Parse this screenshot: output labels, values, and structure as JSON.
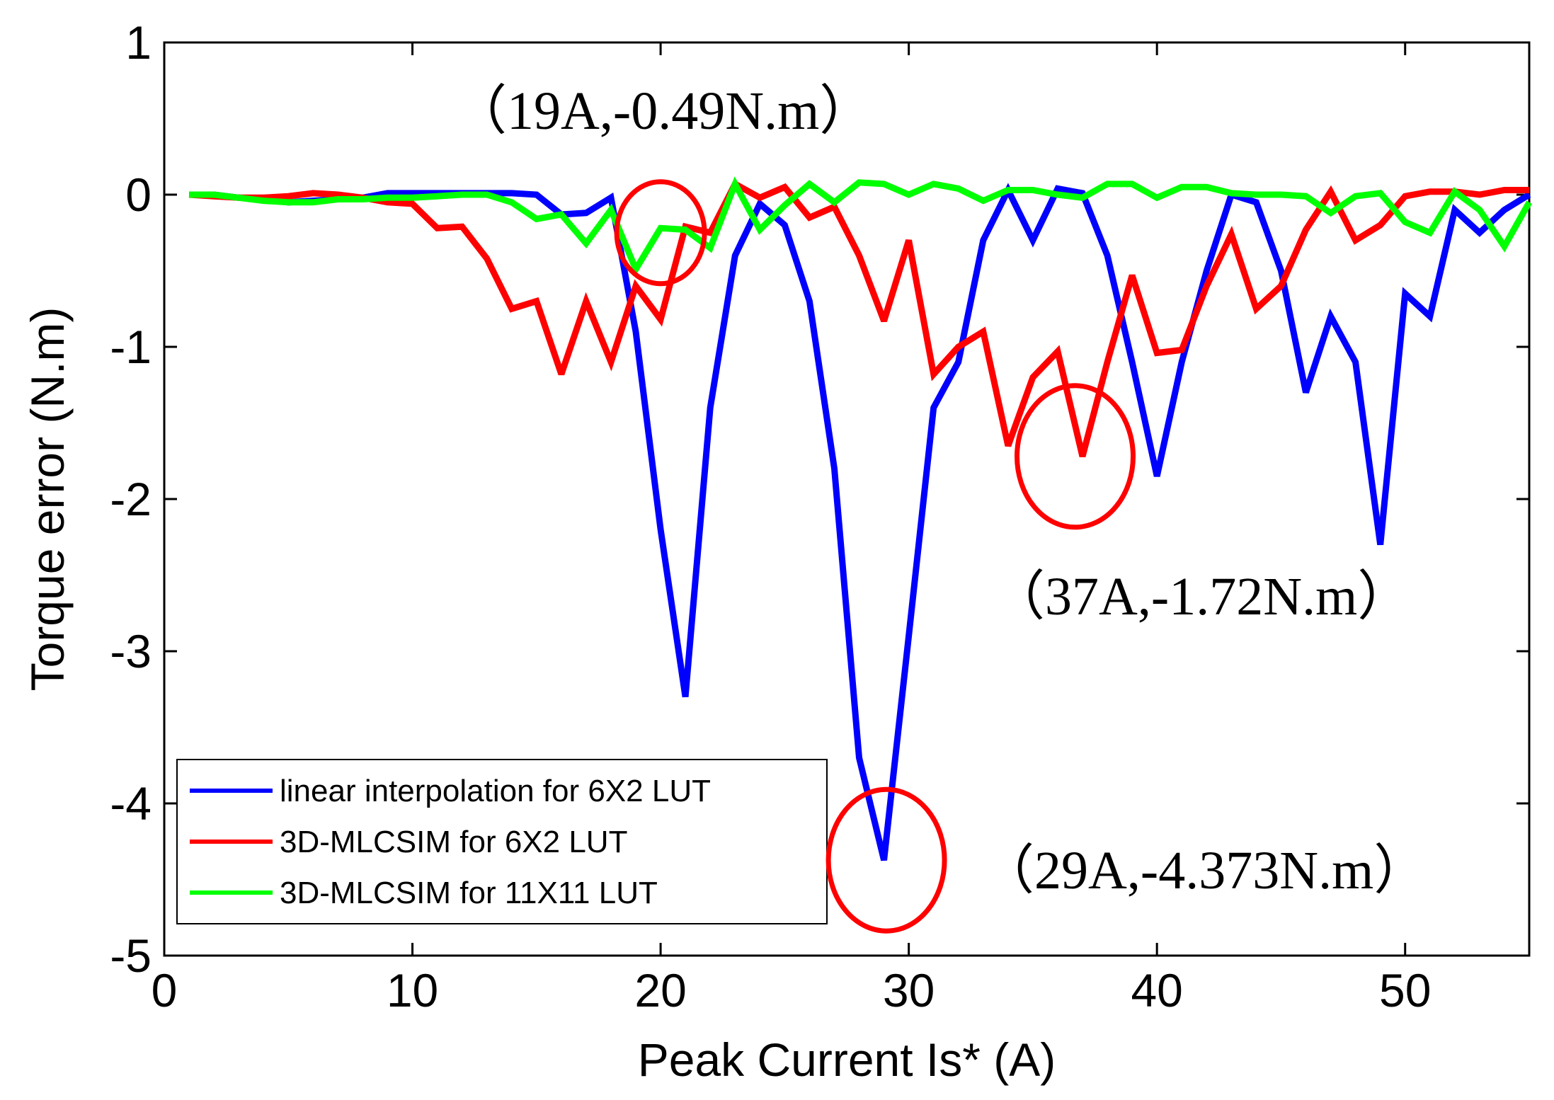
{
  "chart_data": {
    "type": "line",
    "title": "",
    "xlabel": "Peak Current Is* (A)",
    "ylabel": "Torque error (N.m)",
    "xlim": [
      0,
      55
    ],
    "ylim": [
      -5,
      1
    ],
    "x_ticks": [
      0,
      10,
      20,
      30,
      40,
      50
    ],
    "y_ticks": [
      1,
      0,
      -1,
      -2,
      -3,
      -4,
      -5
    ],
    "x_tick_labels": [
      "0",
      "10",
      "20",
      "30",
      "40",
      "50"
    ],
    "y_tick_labels": [
      "1",
      "0",
      "-1",
      "-2",
      "-3",
      "-4",
      "-5"
    ],
    "grid": false,
    "legend_position": "bottom-left",
    "x": [
      1,
      2,
      3,
      4,
      5,
      6,
      7,
      8,
      9,
      10,
      11,
      12,
      13,
      14,
      15,
      16,
      17,
      18,
      19,
      20,
      21,
      22,
      23,
      24,
      25,
      26,
      27,
      28,
      29,
      30,
      31,
      32,
      33,
      34,
      35,
      36,
      37,
      38,
      39,
      40,
      41,
      42,
      43,
      44,
      45,
      46,
      47,
      48,
      49,
      50,
      51,
      52,
      53,
      54,
      55
    ],
    "series": [
      {
        "name": "linear interpolation for 6X2 LUT",
        "color": "#0000ff",
        "values": [
          0,
          0,
          -0.02,
          -0.03,
          -0.05,
          -0.04,
          -0.03,
          -0.02,
          0.01,
          0.01,
          0.01,
          0.01,
          0.01,
          0.01,
          0,
          -0.13,
          -0.12,
          -0.02,
          -0.9,
          -2.2,
          -3.3,
          -1.4,
          -0.4,
          -0.06,
          -0.2,
          -0.7,
          -1.8,
          -3.7,
          -4.373,
          -2.9,
          -1.4,
          -1.1,
          -0.3,
          0.03,
          -0.3,
          0.04,
          0.01,
          -0.4,
          -1.1,
          -1.85,
          -1.1,
          -0.5,
          0,
          -0.05,
          -0.5,
          -1.3,
          -0.8,
          -1.1,
          -2.3,
          -0.65,
          -0.8,
          -0.1,
          -0.25,
          -0.1,
          0
        ]
      },
      {
        "name": "3D-MLCSIM for 6X2 LUT",
        "color": "#ff0000",
        "values": [
          0,
          -0.01,
          -0.02,
          -0.02,
          -0.01,
          0.01,
          0,
          -0.02,
          -0.05,
          -0.06,
          -0.22,
          -0.21,
          -0.42,
          -0.75,
          -0.7,
          -1.18,
          -0.7,
          -1.1,
          -0.6,
          -0.82,
          -0.21,
          -0.25,
          0.07,
          -0.02,
          0.05,
          -0.15,
          -0.08,
          -0.4,
          -0.83,
          -0.3,
          -1.18,
          -1.0,
          -0.9,
          -1.65,
          -1.2,
          -1.03,
          -1.72,
          -1.1,
          -0.53,
          -1.04,
          -1.02,
          -0.6,
          -0.26,
          -0.75,
          -0.6,
          -0.23,
          0.02,
          -0.3,
          -0.2,
          -0.01,
          0.02,
          0.02,
          0,
          0.03,
          0.03
        ]
      },
      {
        "name": "3D-MLCSIM for 11X11 LUT",
        "color": "#00ff00",
        "values": [
          0,
          0,
          -0.02,
          -0.04,
          -0.05,
          -0.05,
          -0.03,
          -0.03,
          -0.02,
          -0.02,
          -0.01,
          0,
          0,
          -0.05,
          -0.16,
          -0.13,
          -0.32,
          -0.1,
          -0.49,
          -0.22,
          -0.23,
          -0.35,
          0.07,
          -0.23,
          -0.07,
          0.07,
          -0.05,
          0.08,
          0.07,
          0,
          0.07,
          0.04,
          -0.04,
          0.03,
          0.03,
          0,
          -0.02,
          0.07,
          0.07,
          -0.02,
          0.05,
          0.05,
          0.01,
          0,
          0,
          -0.01,
          -0.12,
          -0.01,
          0.01,
          -0.18,
          -0.25,
          0.02,
          -0.1,
          -0.34,
          -0.05
        ]
      }
    ],
    "annotations": [
      {
        "text": "（19A,-0.49N.m）",
        "x": 20,
        "y": -0.25
      },
      {
        "text": "（37A,-1.72N.m）",
        "x": 36.7,
        "y": -1.72
      },
      {
        "text": "（29A,-4.373N.m）",
        "x": 29.1,
        "y": -4.373
      }
    ]
  }
}
